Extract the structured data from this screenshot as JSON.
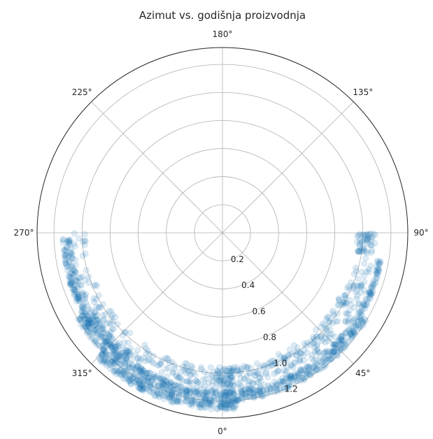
{
  "chart_data": {
    "type": "scatter",
    "projection": "polar",
    "title": "Azimut vs. godišnja proizvodnja",
    "theta_zero_location": "south",
    "theta_direction": "counterclockwise",
    "theta_ticks": [
      {
        "deg": 0,
        "label": "0°"
      },
      {
        "deg": 45,
        "label": "45°"
      },
      {
        "deg": 90,
        "label": "90°"
      },
      {
        "deg": 135,
        "label": "135°"
      },
      {
        "deg": 180,
        "label": "180°"
      },
      {
        "deg": 225,
        "label": "225°"
      },
      {
        "deg": 270,
        "label": "270°"
      },
      {
        "deg": 315,
        "label": "315°"
      }
    ],
    "r_ticks": [
      {
        "value": 0.2,
        "label": "0.2"
      },
      {
        "value": 0.4,
        "label": "0.4"
      },
      {
        "value": 0.6,
        "label": "0.6"
      },
      {
        "value": 0.8,
        "label": "0.8"
      },
      {
        "value": 1.0,
        "label": "1.0"
      },
      {
        "value": 1.2,
        "label": "1.2"
      }
    ],
    "rlim": [
      0,
      1.32
    ],
    "r_label_angle_deg": 22.5,
    "grid": true,
    "marker_color": "#1f77b4",
    "marker_alpha": 0.15,
    "point_groups": [
      {
        "theta_range": [
          -90,
          90
        ],
        "r_range": [
          0.97,
          1.1
        ],
        "count": 260
      },
      {
        "theta_range": [
          -75,
          80
        ],
        "r_range": [
          1.12,
          1.15
        ],
        "count": 340
      },
      {
        "theta_range": [
          -60,
          60
        ],
        "r_range": [
          1.15,
          1.2
        ],
        "count": 380
      },
      {
        "theta_range": [
          -45,
          5
        ],
        "r_range": [
          1.2,
          1.26
        ],
        "count": 220
      },
      {
        "theta_range": [
          -88,
          -35
        ],
        "r_range": [
          1.08,
          1.14
        ],
        "count": 150
      },
      {
        "theta_range": [
          -18,
          70
        ],
        "r_range": [
          0.95,
          1.1
        ],
        "count": 150
      },
      {
        "theta_range": [
          -3,
          12
        ],
        "r_range": [
          0.96,
          1.22
        ],
        "count": 60
      },
      {
        "theta_range": [
          82,
          90
        ],
        "r_range": [
          0.96,
          1.08
        ],
        "count": 40
      }
    ]
  }
}
